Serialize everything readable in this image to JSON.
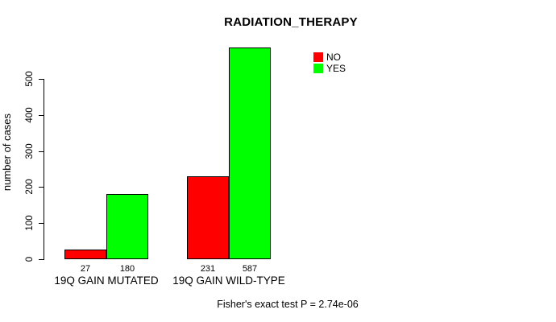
{
  "chart_data": {
    "type": "bar",
    "title": "RADIATION_THERAPY",
    "ylabel": "number of cases",
    "xlabel": "",
    "categories": [
      "19Q GAIN MUTATED",
      "19Q GAIN WILD-TYPE"
    ],
    "series": [
      {
        "name": "NO",
        "color": "#ff0000",
        "values": [
          27,
          231
        ]
      },
      {
        "name": "YES",
        "color": "#00ff00",
        "values": [
          180,
          587
        ]
      }
    ],
    "ylim": [
      0,
      500
    ],
    "yticks": [
      0,
      100,
      200,
      300,
      400,
      500
    ],
    "bar_value_labels": [
      [
        27,
        180
      ],
      [
        231,
        587
      ]
    ],
    "legend": {
      "position": "top-right",
      "entries": [
        "NO",
        "YES"
      ]
    },
    "grid": false,
    "bar_border_color": "#000000",
    "background_color": "#ffffff",
    "caption": "Fisher's exact test P = 2.74e-06"
  }
}
